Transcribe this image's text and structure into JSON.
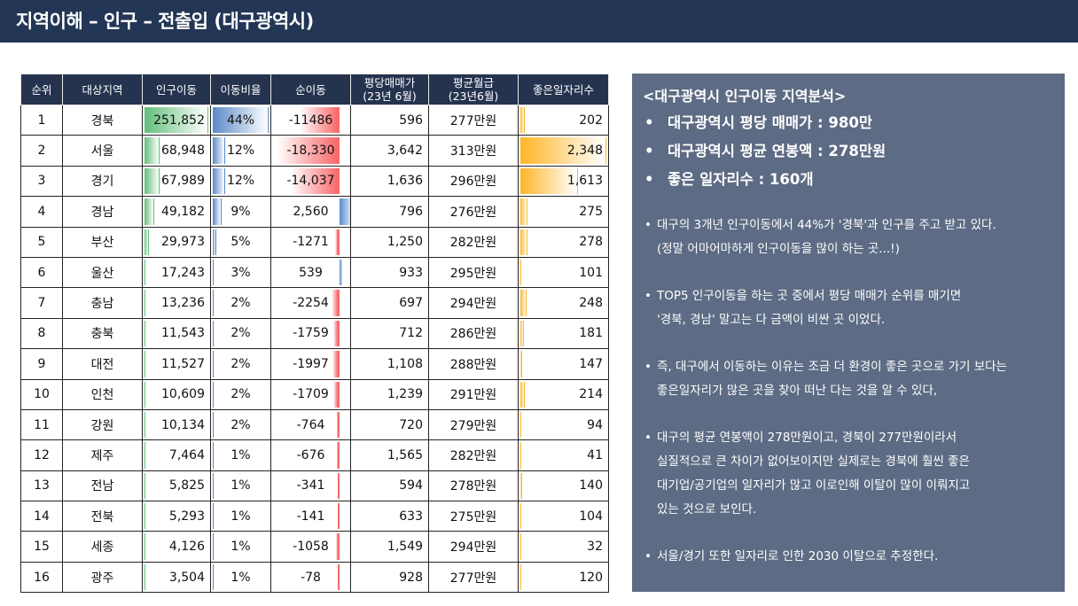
{
  "title": "지역이해 – 인구 – 전출입 (대구광역시)",
  "table": {
    "headers": [
      "순위",
      "대상지역",
      "인구이동",
      "이동비율",
      "순이동",
      "평당매매가\n(23년 6월)",
      "평균월급\n(23년6월)",
      "좋은일자리수"
    ],
    "rows": [
      {
        "rank": "1",
        "region": "경북",
        "movement": "251,852",
        "movement_value": 251852,
        "ratio": "44%",
        "ratio_value": 44,
        "net": "-11486",
        "net_value": -11486,
        "price": "596",
        "salary": "277만원",
        "jobs": "202",
        "jobs_value": 202
      },
      {
        "rank": "2",
        "region": "서울",
        "movement": "68,948",
        "movement_value": 68948,
        "ratio": "12%",
        "ratio_value": 12,
        "net": "-18,330",
        "net_value": -18330,
        "price": "3,642",
        "salary": "313만원",
        "jobs": "2,348",
        "jobs_value": 2348
      },
      {
        "rank": "3",
        "region": "경기",
        "movement": "67,989",
        "movement_value": 67989,
        "ratio": "12%",
        "ratio_value": 12,
        "net": "-14,037",
        "net_value": -14037,
        "price": "1,636",
        "salary": "296만원",
        "jobs": "1,613",
        "jobs_value": 1613
      },
      {
        "rank": "4",
        "region": "경남",
        "movement": "49,182",
        "movement_value": 49182,
        "ratio": "9%",
        "ratio_value": 9,
        "net": "2,560",
        "net_value": 2560,
        "price": "796",
        "salary": "276만원",
        "jobs": "275",
        "jobs_value": 275
      },
      {
        "rank": "5",
        "region": "부산",
        "movement": "29,973",
        "movement_value": 29973,
        "ratio": "5%",
        "ratio_value": 5,
        "net": "-1271",
        "net_value": -1271,
        "price": "1,250",
        "salary": "282만원",
        "jobs": "278",
        "jobs_value": 278
      },
      {
        "rank": "6",
        "region": "울산",
        "movement": "17,243",
        "movement_value": 17243,
        "ratio": "3%",
        "ratio_value": 3,
        "net": "539",
        "net_value": 539,
        "price": "933",
        "salary": "295만원",
        "jobs": "101",
        "jobs_value": 101
      },
      {
        "rank": "7",
        "region": "충남",
        "movement": "13,236",
        "movement_value": 13236,
        "ratio": "2%",
        "ratio_value": 2,
        "net": "-2254",
        "net_value": -2254,
        "price": "697",
        "salary": "294만원",
        "jobs": "248",
        "jobs_value": 248
      },
      {
        "rank": "8",
        "region": "충북",
        "movement": "11,543",
        "movement_value": 11543,
        "ratio": "2%",
        "ratio_value": 2,
        "net": "-1759",
        "net_value": -1759,
        "price": "712",
        "salary": "286만원",
        "jobs": "181",
        "jobs_value": 181
      },
      {
        "rank": "9",
        "region": "대전",
        "movement": "11,527",
        "movement_value": 11527,
        "ratio": "2%",
        "ratio_value": 2,
        "net": "-1997",
        "net_value": -1997,
        "price": "1,108",
        "salary": "288만원",
        "jobs": "147",
        "jobs_value": 147
      },
      {
        "rank": "10",
        "region": "인천",
        "movement": "10,609",
        "movement_value": 10609,
        "ratio": "2%",
        "ratio_value": 2,
        "net": "-1709",
        "net_value": -1709,
        "price": "1,239",
        "salary": "291만원",
        "jobs": "214",
        "jobs_value": 214
      },
      {
        "rank": "11",
        "region": "강원",
        "movement": "10,134",
        "movement_value": 10134,
        "ratio": "2%",
        "ratio_value": 2,
        "net": "-764",
        "net_value": -764,
        "price": "720",
        "salary": "279만원",
        "jobs": "94",
        "jobs_value": 94
      },
      {
        "rank": "12",
        "region": "제주",
        "movement": "7,464",
        "movement_value": 7464,
        "ratio": "1%",
        "ratio_value": 1,
        "net": "-676",
        "net_value": -676,
        "price": "1,565",
        "salary": "282만원",
        "jobs": "41",
        "jobs_value": 41
      },
      {
        "rank": "13",
        "region": "전남",
        "movement": "5,825",
        "movement_value": 5825,
        "ratio": "1%",
        "ratio_value": 1,
        "net": "-341",
        "net_value": -341,
        "price": "594",
        "salary": "278만원",
        "jobs": "140",
        "jobs_value": 140
      },
      {
        "rank": "14",
        "region": "전북",
        "movement": "5,293",
        "movement_value": 5293,
        "ratio": "1%",
        "ratio_value": 1,
        "net": "-141",
        "net_value": -141,
        "price": "633",
        "salary": "275만원",
        "jobs": "104",
        "jobs_value": 104
      },
      {
        "rank": "15",
        "region": "세종",
        "movement": "4,126",
        "movement_value": 4126,
        "ratio": "1%",
        "ratio_value": 1,
        "net": "-1058",
        "net_value": -1058,
        "price": "1,549",
        "salary": "294만원",
        "jobs": "32",
        "jobs_value": 32
      },
      {
        "rank": "16",
        "region": "광주",
        "movement": "3,504",
        "movement_value": 3504,
        "ratio": "1%",
        "ratio_value": 1,
        "net": "-78",
        "net_value": -78,
        "price": "928",
        "salary": "277만원",
        "jobs": "120",
        "jobs_value": 120
      }
    ]
  },
  "panel": {
    "title": "<대구광역시 인구이동 지역분석>",
    "bullet_symbol": "•",
    "bullets": [
      "대구광역시 평당 매매가 : 980만",
      "대구광역시 평균 연봉액 : 278만원",
      "좋은 일자리수 : 160개"
    ],
    "notes": [
      "대구의 3개년 인구이동에서 44%가 '경북'과 인구를 주고 받고 있다.\n(정말 어마어마하게 인구이동을 많이 하는 곳...!)",
      "TOP5 인구이동을 하는 곳 중에서 평당 매매가 순위를 매기면\n'경북, 경남' 말고는 다 금액이 비싼 곳 이었다.",
      "즉, 대구에서 이동하는 이유는 조금 더 환경이 좋은 곳으로 가기 보다는\n좋은일자리가 많은 곳을 찾아 떠난 다는 것을 알 수 있다,",
      "대구의 평균 연봉액이 278만원이고, 경북이 277만원이라서\n실질적으로 큰 차이가 없어보이지만 실제로는 경북에 훨씬 좋은\n대기업/공기업의 일자리가 많고 이로인해 이탈이 많이 이뤄지고\n있는 것으로 보인다.",
      "서울/경기 또한 일자리로 인한 2030 이탈으로 추정한다."
    ]
  },
  "colors": {
    "title_bg": "#233656",
    "header_bg": "#25334f",
    "panel_bg": "#5d6b84",
    "movement_bar": "#63be7b",
    "ratio_bar": "#5a8ac6",
    "net_negative_bar": "#f8696b",
    "net_positive_bar": "#5a8ac6",
    "jobs_bar": "#ffb628"
  }
}
